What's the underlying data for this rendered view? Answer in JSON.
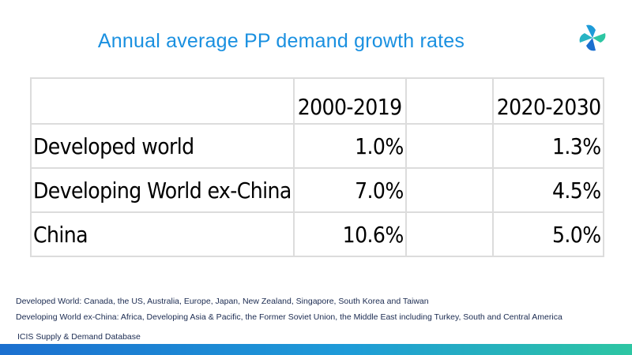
{
  "title": "Annual average PP demand growth rates",
  "table": {
    "headers": [
      "",
      "2000-2019",
      "",
      "2020-2030"
    ],
    "rows": [
      {
        "label": "Developed world",
        "v1": "1.0%",
        "v2": "1.3%"
      },
      {
        "label": "Developing World ex-China",
        "v1": "7.0%",
        "v2": "4.5%"
      },
      {
        "label": "China",
        "v1": "10.6%",
        "v2": "5.0%"
      }
    ]
  },
  "notes": [
    "Developed World: Canada, the US, Australia, Europe, Japan, New Zealand, Singapore, South Korea and Taiwan",
    "Developing World ex-China: Africa, Developing Asia & Pacific, the Former Soviet Union, the Middle East including Turkey, South and Central America"
  ],
  "source": "ICIS Supply & Demand Database",
  "colors": {
    "title": "#1a90e0",
    "footer_start": "#1b6fcf",
    "footer_end": "#2dc6a3",
    "grid_line": "#dcdcdc"
  },
  "icons": {
    "logo": "icis-pinwheel-logo"
  }
}
